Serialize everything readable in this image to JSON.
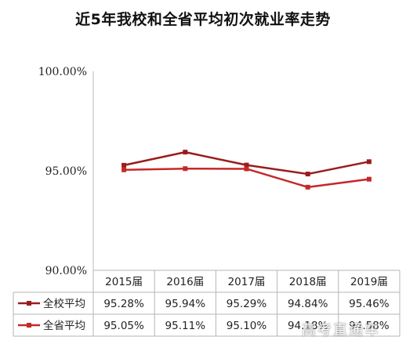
{
  "chart_data": {
    "type": "line",
    "title": "近5年我校和全省平均初次就业率走势",
    "categories": [
      "2015届",
      "2016届",
      "2017届",
      "2018届",
      "2019届"
    ],
    "series": [
      {
        "name": "全校平均",
        "values": [
          95.28,
          95.94,
          95.29,
          94.84,
          95.46
        ],
        "labels": [
          "95.28%",
          "95.94%",
          "95.29%",
          "94.84%",
          "95.46%"
        ],
        "color": "#9b1c1c"
      },
      {
        "name": "全省平均",
        "values": [
          95.05,
          95.11,
          95.1,
          94.18,
          94.58
        ],
        "labels": [
          "95.05%",
          "95.11%",
          "95.10%",
          "94.18%",
          "94.58%"
        ],
        "color": "#c62828"
      }
    ],
    "ylim": [
      90,
      100
    ],
    "yticks": [
      "90.00%",
      "95.00%",
      "100.00%"
    ],
    "ytick_values": [
      90,
      95,
      100
    ],
    "grid": false,
    "legend": "data-table"
  },
  "watermark": "高考直通车"
}
